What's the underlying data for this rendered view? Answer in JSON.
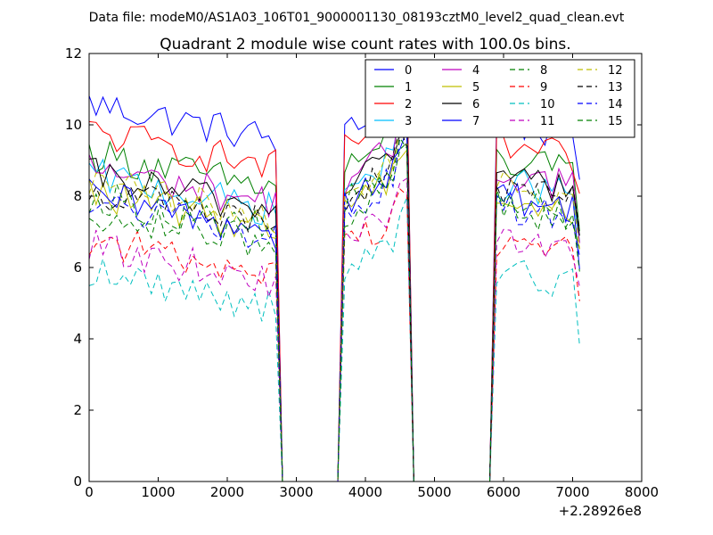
{
  "chart_data": {
    "type": "line",
    "suptitle": "Data file: modeM0/AS1A03_106T01_9000001130_08193cztM0_level2_quad_clean.evt",
    "title": "Quadrant 2 module wise count rates with 100.0s bins.",
    "xlabel": "",
    "ylabel": "",
    "x_offset_label": "+2.28926e8",
    "xlim": [
      0,
      8000
    ],
    "ylim": [
      0,
      12
    ],
    "xticks": [
      "0",
      "1000",
      "2000",
      "3000",
      "4000",
      "5000",
      "6000",
      "7000",
      "8000"
    ],
    "yticks": [
      "0",
      "2",
      "4",
      "6",
      "8",
      "10",
      "12"
    ],
    "grid": false,
    "legend_position": "top-right",
    "segments": [
      [
        0,
        2700
      ],
      [
        3700,
        4600
      ],
      [
        5900,
        7100
      ]
    ],
    "series": [
      {
        "name": "0",
        "color": "#0000ff",
        "dash": "solid",
        "levels": [
          10.0,
          9.7,
          10.1
        ]
      },
      {
        "name": "1",
        "color": "#008000",
        "dash": "solid",
        "levels": [
          8.6,
          8.8,
          9.0
        ]
      },
      {
        "name": "2",
        "color": "#ff0000",
        "dash": "solid",
        "levels": [
          9.2,
          9.3,
          9.4
        ]
      },
      {
        "name": "3",
        "color": "#00bfff",
        "dash": "solid",
        "levels": [
          8.0,
          8.2,
          8.4
        ]
      },
      {
        "name": "4",
        "color": "#bf00bf",
        "dash": "solid",
        "levels": [
          8.2,
          8.5,
          8.7
        ]
      },
      {
        "name": "5",
        "color": "#bfbf00",
        "dash": "solid",
        "levels": [
          7.5,
          7.8,
          7.9
        ]
      },
      {
        "name": "6",
        "color": "#000000",
        "dash": "solid",
        "levels": [
          8.0,
          8.4,
          8.6
        ]
      },
      {
        "name": "7",
        "color": "#0000ff",
        "dash": "solid",
        "levels": [
          7.4,
          7.9,
          8.0
        ]
      },
      {
        "name": "8",
        "color": "#008000",
        "dash": "dashed",
        "levels": [
          7.4,
          7.8,
          7.9
        ]
      },
      {
        "name": "9",
        "color": "#ff0000",
        "dash": "dashed",
        "levels": [
          6.2,
          6.6,
          6.8
        ]
      },
      {
        "name": "10",
        "color": "#00bfbf",
        "dash": "dashed",
        "levels": [
          5.3,
          5.8,
          5.9
        ]
      },
      {
        "name": "11",
        "color": "#bf00bf",
        "dash": "dashed",
        "levels": [
          6.0,
          6.6,
          6.9
        ]
      },
      {
        "name": "12",
        "color": "#bfbf00",
        "dash": "dashed",
        "levels": [
          7.8,
          8.1,
          8.3
        ]
      },
      {
        "name": "13",
        "color": "#000000",
        "dash": "dashed",
        "levels": [
          7.6,
          8.0,
          8.2
        ]
      },
      {
        "name": "14",
        "color": "#0000ff",
        "dash": "dashed",
        "levels": [
          7.2,
          7.6,
          7.8
        ]
      },
      {
        "name": "15",
        "color": "#008000",
        "dash": "dashed",
        "levels": [
          7.0,
          7.5,
          7.7
        ]
      }
    ]
  }
}
